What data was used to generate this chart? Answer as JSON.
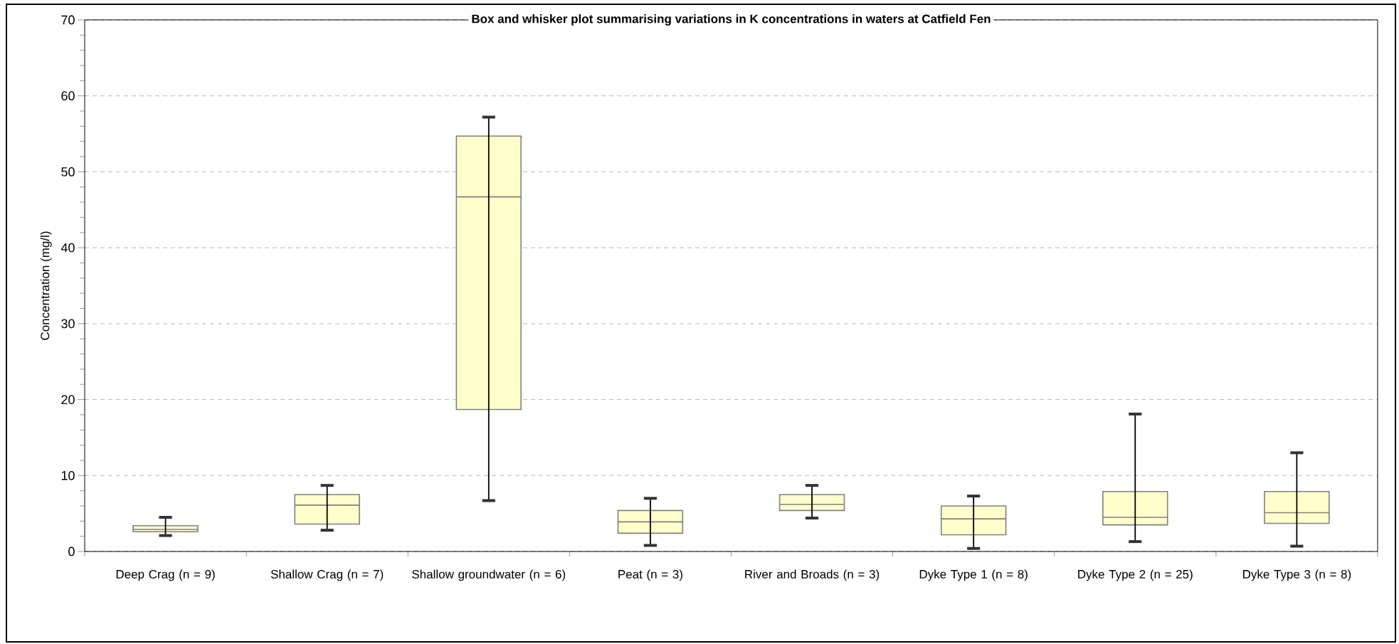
{
  "chart_data": {
    "type": "box",
    "title": "Box and whisker plot summarising variations in K concentrations in waters at Catfield Fen",
    "ylabel": "Concentration (mg/l)",
    "categories": [
      "Deep Crag (n = 9)",
      "Shallow Crag (n = 7)",
      "Shallow groundwater (n = 6)",
      "Peat (n = 3)",
      "River and Broads (n = 3)",
      "Dyke Type 1 (n = 8)",
      "Dyke Type 2 (n = 25)",
      "Dyke Type 3 (n = 8)"
    ],
    "boxes": [
      {
        "low": 2.1,
        "q1": 2.6,
        "median": 2.9,
        "q3": 3.4,
        "high": 4.5
      },
      {
        "low": 2.8,
        "q1": 3.6,
        "median": 6.1,
        "q3": 7.5,
        "high": 8.7
      },
      {
        "low": 6.7,
        "q1": 18.7,
        "median": 46.7,
        "q3": 54.7,
        "high": 57.2
      },
      {
        "low": 0.8,
        "q1": 2.4,
        "median": 3.9,
        "q3": 5.4,
        "high": 7.0
      },
      {
        "low": 4.4,
        "q1": 5.4,
        "median": 6.2,
        "q3": 7.5,
        "high": 8.7
      },
      {
        "low": 0.4,
        "q1": 2.2,
        "median": 4.3,
        "q3": 6.0,
        "high": 7.3
      },
      {
        "low": 1.3,
        "q1": 3.5,
        "median": 4.5,
        "q3": 7.9,
        "high": 18.1
      },
      {
        "low": 0.7,
        "q1": 3.7,
        "median": 5.1,
        "q3": 7.9,
        "high": 13.0
      }
    ],
    "color": "#ffffcc",
    "ylim": [
      0,
      70
    ],
    "yticks": [
      0,
      10,
      20,
      30,
      40,
      50,
      60,
      70
    ],
    "grid": "y"
  }
}
